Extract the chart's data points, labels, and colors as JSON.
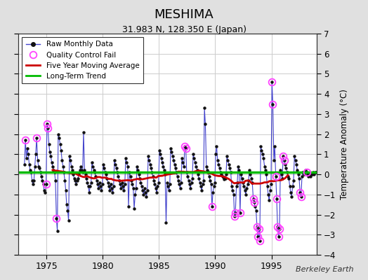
{
  "title": "MESHIMA",
  "subtitle": "31.983 N, 128.350 E (Japan)",
  "ylabel": "Temperature Anomaly (°C)",
  "attribution": "Berkeley Earth",
  "xlim": [
    1972.5,
    1999.0
  ],
  "ylim": [
    -4,
    7
  ],
  "yticks": [
    -4,
    -3,
    -2,
    -1,
    0,
    1,
    2,
    3,
    4,
    5,
    6,
    7
  ],
  "xticks": [
    1975,
    1980,
    1985,
    1990,
    1995
  ],
  "fig_bg_color": "#e0e0e0",
  "plot_bg_color": "#ffffff",
  "raw_line_color": "#4444cc",
  "raw_marker_color": "#111111",
  "qc_fail_color": "#ff44ff",
  "moving_avg_color": "#cc0000",
  "trend_color": "#00bb00",
  "trend_value": 0.12,
  "raw_data": [
    [
      1973.04,
      0.5
    ],
    [
      1973.12,
      1.7
    ],
    [
      1973.21,
      0.8
    ],
    [
      1973.29,
      1.3
    ],
    [
      1973.38,
      1.0
    ],
    [
      1973.46,
      0.5
    ],
    [
      1973.54,
      0.2
    ],
    [
      1973.63,
      0.1
    ],
    [
      1973.71,
      -0.3
    ],
    [
      1973.79,
      -0.5
    ],
    [
      1973.88,
      -0.3
    ],
    [
      1973.96,
      0.4
    ],
    [
      1974.04,
      1.0
    ],
    [
      1974.12,
      1.8
    ],
    [
      1974.21,
      0.7
    ],
    [
      1974.29,
      0.4
    ],
    [
      1974.38,
      0.3
    ],
    [
      1974.46,
      0.1
    ],
    [
      1974.54,
      -0.1
    ],
    [
      1974.63,
      -0.3
    ],
    [
      1974.71,
      -0.5
    ],
    [
      1974.79,
      -0.8
    ],
    [
      1974.88,
      -0.9
    ],
    [
      1974.96,
      -0.5
    ],
    [
      1975.04,
      2.5
    ],
    [
      1975.12,
      2.3
    ],
    [
      1975.21,
      1.5
    ],
    [
      1975.29,
      1.1
    ],
    [
      1975.38,
      0.9
    ],
    [
      1975.46,
      0.6
    ],
    [
      1975.54,
      0.4
    ],
    [
      1975.63,
      0.2
    ],
    [
      1975.71,
      0.1
    ],
    [
      1975.79,
      -0.3
    ],
    [
      1975.88,
      -2.2
    ],
    [
      1975.96,
      -2.8
    ],
    [
      1976.04,
      2.0
    ],
    [
      1976.12,
      1.8
    ],
    [
      1976.21,
      1.5
    ],
    [
      1976.29,
      1.2
    ],
    [
      1976.38,
      0.7
    ],
    [
      1976.46,
      0.4
    ],
    [
      1976.54,
      0.1
    ],
    [
      1976.63,
      -0.3
    ],
    [
      1976.71,
      -0.8
    ],
    [
      1976.79,
      -1.5
    ],
    [
      1976.88,
      -1.8
    ],
    [
      1976.96,
      -2.3
    ],
    [
      1977.04,
      0.9
    ],
    [
      1977.12,
      0.7
    ],
    [
      1977.21,
      0.4
    ],
    [
      1977.29,
      0.2
    ],
    [
      1977.38,
      0.0
    ],
    [
      1977.46,
      -0.2
    ],
    [
      1977.54,
      -0.3
    ],
    [
      1977.63,
      -0.5
    ],
    [
      1977.71,
      -0.3
    ],
    [
      1977.79,
      -0.2
    ],
    [
      1977.88,
      0.0
    ],
    [
      1977.96,
      0.2
    ],
    [
      1978.04,
      0.4
    ],
    [
      1978.12,
      0.2
    ],
    [
      1978.21,
      0.1
    ],
    [
      1978.29,
      2.1
    ],
    [
      1978.38,
      0.2
    ],
    [
      1978.46,
      0.0
    ],
    [
      1978.54,
      -0.2
    ],
    [
      1978.63,
      -0.4
    ],
    [
      1978.71,
      -0.6
    ],
    [
      1978.79,
      -0.9
    ],
    [
      1978.88,
      -0.6
    ],
    [
      1978.96,
      -0.4
    ],
    [
      1979.04,
      0.6
    ],
    [
      1979.12,
      0.4
    ],
    [
      1979.21,
      0.2
    ],
    [
      1979.29,
      0.1
    ],
    [
      1979.38,
      -0.1
    ],
    [
      1979.46,
      -0.3
    ],
    [
      1979.54,
      -0.5
    ],
    [
      1979.63,
      -0.7
    ],
    [
      1979.71,
      -0.4
    ],
    [
      1979.79,
      -0.6
    ],
    [
      1979.88,
      -0.8
    ],
    [
      1979.96,
      -0.5
    ],
    [
      1980.04,
      0.5
    ],
    [
      1980.12,
      0.3
    ],
    [
      1980.21,
      0.1
    ],
    [
      1980.29,
      0.0
    ],
    [
      1980.38,
      -0.2
    ],
    [
      1980.46,
      -0.4
    ],
    [
      1980.54,
      -0.6
    ],
    [
      1980.63,
      -0.8
    ],
    [
      1980.71,
      -0.5
    ],
    [
      1980.79,
      -0.7
    ],
    [
      1980.88,
      -0.9
    ],
    [
      1980.96,
      -0.6
    ],
    [
      1981.04,
      0.7
    ],
    [
      1981.12,
      0.5
    ],
    [
      1981.21,
      0.3
    ],
    [
      1981.29,
      0.1
    ],
    [
      1981.38,
      -0.1
    ],
    [
      1981.46,
      -0.3
    ],
    [
      1981.54,
      -0.5
    ],
    [
      1981.63,
      -0.7
    ],
    [
      1981.71,
      -0.4
    ],
    [
      1981.79,
      -0.6
    ],
    [
      1981.88,
      -0.8
    ],
    [
      1981.96,
      -0.5
    ],
    [
      1982.04,
      0.8
    ],
    [
      1982.12,
      0.6
    ],
    [
      1982.21,
      0.4
    ],
    [
      1982.29,
      -1.6
    ],
    [
      1982.38,
      0.1
    ],
    [
      1982.46,
      -0.1
    ],
    [
      1982.54,
      -0.3
    ],
    [
      1982.63,
      -0.5
    ],
    [
      1982.71,
      -0.7
    ],
    [
      1982.79,
      -1.7
    ],
    [
      1982.88,
      -1.0
    ],
    [
      1982.96,
      -0.7
    ],
    [
      1983.04,
      0.4
    ],
    [
      1983.12,
      0.2
    ],
    [
      1983.21,
      0.0
    ],
    [
      1983.29,
      -0.2
    ],
    [
      1983.38,
      -0.4
    ],
    [
      1983.46,
      -0.6
    ],
    [
      1983.54,
      -0.8
    ],
    [
      1983.63,
      -1.0
    ],
    [
      1983.71,
      -0.7
    ],
    [
      1983.79,
      -0.9
    ],
    [
      1983.88,
      -1.1
    ],
    [
      1983.96,
      -0.8
    ],
    [
      1984.04,
      0.9
    ],
    [
      1984.12,
      0.7
    ],
    [
      1984.21,
      0.5
    ],
    [
      1984.29,
      0.3
    ],
    [
      1984.38,
      0.1
    ],
    [
      1984.46,
      -0.1
    ],
    [
      1984.54,
      -0.3
    ],
    [
      1984.63,
      -0.5
    ],
    [
      1984.71,
      -0.7
    ],
    [
      1984.79,
      -0.9
    ],
    [
      1984.88,
      -0.6
    ],
    [
      1984.96,
      -0.4
    ],
    [
      1985.04,
      1.2
    ],
    [
      1985.12,
      1.0
    ],
    [
      1985.21,
      0.8
    ],
    [
      1985.29,
      0.6
    ],
    [
      1985.38,
      0.4
    ],
    [
      1985.46,
      0.2
    ],
    [
      1985.54,
      0.0
    ],
    [
      1985.63,
      -2.4
    ],
    [
      1985.71,
      -0.4
    ],
    [
      1985.79,
      -0.6
    ],
    [
      1985.88,
      -0.8
    ],
    [
      1985.96,
      -0.5
    ],
    [
      1986.04,
      1.3
    ],
    [
      1986.12,
      1.1
    ],
    [
      1986.21,
      0.9
    ],
    [
      1986.29,
      0.7
    ],
    [
      1986.38,
      0.5
    ],
    [
      1986.46,
      0.3
    ],
    [
      1986.54,
      0.1
    ],
    [
      1986.63,
      -0.1
    ],
    [
      1986.71,
      -0.3
    ],
    [
      1986.79,
      -0.5
    ],
    [
      1986.88,
      -0.7
    ],
    [
      1986.96,
      -0.4
    ],
    [
      1987.04,
      0.8
    ],
    [
      1987.12,
      0.6
    ],
    [
      1987.21,
      0.4
    ],
    [
      1987.29,
      1.4
    ],
    [
      1987.38,
      1.3
    ],
    [
      1987.46,
      0.1
    ],
    [
      1987.54,
      -0.1
    ],
    [
      1987.63,
      -0.3
    ],
    [
      1987.71,
      -0.5
    ],
    [
      1987.79,
      -0.7
    ],
    [
      1987.88,
      -0.4
    ],
    [
      1987.96,
      -0.2
    ],
    [
      1988.04,
      1.0
    ],
    [
      1988.12,
      0.8
    ],
    [
      1988.21,
      0.6
    ],
    [
      1988.29,
      0.4
    ],
    [
      1988.38,
      0.2
    ],
    [
      1988.46,
      0.0
    ],
    [
      1988.54,
      -0.2
    ],
    [
      1988.63,
      -0.4
    ],
    [
      1988.71,
      -0.6
    ],
    [
      1988.79,
      -0.8
    ],
    [
      1988.88,
      -0.5
    ],
    [
      1988.96,
      -0.3
    ],
    [
      1989.04,
      3.3
    ],
    [
      1989.12,
      2.5
    ],
    [
      1989.21,
      0.4
    ],
    [
      1989.29,
      0.2
    ],
    [
      1989.38,
      0.1
    ],
    [
      1989.46,
      -0.1
    ],
    [
      1989.54,
      -0.3
    ],
    [
      1989.63,
      -0.5
    ],
    [
      1989.71,
      -1.6
    ],
    [
      1989.79,
      -0.9
    ],
    [
      1989.88,
      -0.6
    ],
    [
      1989.96,
      -0.4
    ],
    [
      1990.04,
      1.0
    ],
    [
      1990.12,
      1.4
    ],
    [
      1990.21,
      0.7
    ],
    [
      1990.29,
      0.5
    ],
    [
      1990.38,
      0.3
    ],
    [
      1990.46,
      0.1
    ],
    [
      1990.54,
      0.0
    ],
    [
      1990.63,
      -0.1
    ],
    [
      1990.71,
      -0.15
    ],
    [
      1990.79,
      -0.25
    ],
    [
      1990.88,
      -0.2
    ],
    [
      1990.96,
      0.0
    ],
    [
      1991.04,
      0.9
    ],
    [
      1991.12,
      0.7
    ],
    [
      1991.21,
      0.5
    ],
    [
      1991.29,
      0.3
    ],
    [
      1991.38,
      0.1
    ],
    [
      1991.46,
      -0.6
    ],
    [
      1991.54,
      -0.8
    ],
    [
      1991.63,
      -1.0
    ],
    [
      1991.71,
      -2.1
    ],
    [
      1991.79,
      -1.9
    ],
    [
      1991.88,
      -0.6
    ],
    [
      1991.96,
      -0.4
    ],
    [
      1992.04,
      0.4
    ],
    [
      1992.12,
      0.2
    ],
    [
      1992.21,
      -1.9
    ],
    [
      1992.29,
      0.0
    ],
    [
      1992.38,
      -0.2
    ],
    [
      1992.46,
      -0.4
    ],
    [
      1992.54,
      -0.6
    ],
    [
      1992.63,
      -0.8
    ],
    [
      1992.71,
      -1.0
    ],
    [
      1992.79,
      -0.7
    ],
    [
      1992.88,
      -0.5
    ],
    [
      1992.96,
      -0.3
    ],
    [
      1993.04,
      0.2
    ],
    [
      1993.12,
      0.0
    ],
    [
      1993.21,
      -0.2
    ],
    [
      1993.29,
      -0.4
    ],
    [
      1993.38,
      -1.2
    ],
    [
      1993.46,
      -1.4
    ],
    [
      1993.54,
      -1.6
    ],
    [
      1993.63,
      -1.8
    ],
    [
      1993.71,
      -2.6
    ],
    [
      1993.79,
      -3.1
    ],
    [
      1993.88,
      -2.7
    ],
    [
      1993.96,
      -3.3
    ],
    [
      1994.04,
      1.4
    ],
    [
      1994.12,
      1.2
    ],
    [
      1994.21,
      1.0
    ],
    [
      1994.29,
      0.8
    ],
    [
      1994.38,
      0.4
    ],
    [
      1994.46,
      0.2
    ],
    [
      1994.54,
      0.0
    ],
    [
      1994.63,
      -0.6
    ],
    [
      1994.71,
      -1.0
    ],
    [
      1994.79,
      -1.3
    ],
    [
      1994.88,
      -0.8
    ],
    [
      1994.96,
      -0.5
    ],
    [
      1995.04,
      4.6
    ],
    [
      1995.12,
      3.5
    ],
    [
      1995.21,
      0.7
    ],
    [
      1995.29,
      1.4
    ],
    [
      1995.38,
      -0.1
    ],
    [
      1995.46,
      -1.2
    ],
    [
      1995.54,
      -2.6
    ],
    [
      1995.63,
      -3.1
    ],
    [
      1995.71,
      -2.7
    ],
    [
      1995.79,
      0.2
    ],
    [
      1995.88,
      0.0
    ],
    [
      1995.96,
      -0.2
    ],
    [
      1996.04,
      0.9
    ],
    [
      1996.12,
      0.7
    ],
    [
      1996.21,
      0.5
    ],
    [
      1996.29,
      0.3
    ],
    [
      1996.38,
      0.1
    ],
    [
      1996.46,
      -0.1
    ],
    [
      1996.54,
      -0.2
    ],
    [
      1996.63,
      -0.6
    ],
    [
      1996.71,
      -0.9
    ],
    [
      1996.79,
      -1.1
    ],
    [
      1996.88,
      -0.6
    ],
    [
      1996.96,
      -0.3
    ],
    [
      1997.04,
      0.9
    ],
    [
      1997.12,
      0.7
    ],
    [
      1997.21,
      0.5
    ],
    [
      1997.29,
      0.2
    ],
    [
      1997.38,
      0.0
    ],
    [
      1997.46,
      -0.2
    ],
    [
      1997.54,
      -0.9
    ],
    [
      1997.63,
      -1.1
    ],
    [
      1997.71,
      -0.1
    ],
    [
      1997.79,
      0.1
    ],
    [
      1997.88,
      0.0
    ],
    [
      1997.96,
      0.1
    ],
    [
      1998.04,
      0.2
    ],
    [
      1998.12,
      0.1
    ],
    [
      1998.21,
      0.0
    ],
    [
      1998.29,
      -0.1
    ],
    [
      1998.38,
      0.0
    ],
    [
      1998.46,
      -0.1
    ],
    [
      1998.54,
      0.0
    ],
    [
      1998.63,
      0.0
    ],
    [
      1998.71,
      0.1
    ],
    [
      1998.79,
      0.0
    ],
    [
      1998.88,
      0.1
    ],
    [
      1998.96,
      0.1
    ]
  ],
  "qc_fail_points": [
    [
      1973.12,
      1.7
    ],
    [
      1974.12,
      1.8
    ],
    [
      1974.96,
      -0.5
    ],
    [
      1975.04,
      2.5
    ],
    [
      1975.12,
      2.3
    ],
    [
      1975.88,
      -2.2
    ],
    [
      1987.29,
      1.4
    ],
    [
      1987.38,
      1.3
    ],
    [
      1989.71,
      -1.6
    ],
    [
      1991.71,
      -2.1
    ],
    [
      1991.79,
      -1.9
    ],
    [
      1992.21,
      -1.9
    ],
    [
      1993.38,
      -1.2
    ],
    [
      1993.46,
      -1.4
    ],
    [
      1993.71,
      -2.6
    ],
    [
      1993.79,
      -3.1
    ],
    [
      1993.88,
      -2.7
    ],
    [
      1993.96,
      -3.3
    ],
    [
      1995.04,
      4.6
    ],
    [
      1995.12,
      3.5
    ],
    [
      1995.38,
      -0.1
    ],
    [
      1995.46,
      -1.2
    ],
    [
      1995.54,
      -2.6
    ],
    [
      1995.63,
      -3.1
    ],
    [
      1995.71,
      -2.7
    ],
    [
      1996.04,
      0.9
    ],
    [
      1996.12,
      0.7
    ],
    [
      1997.54,
      -0.9
    ],
    [
      1997.63,
      -1.1
    ],
    [
      1998.12,
      0.1
    ]
  ],
  "moving_avg": [
    [
      1975.04,
      -0.12
    ],
    [
      1975.21,
      -0.13
    ],
    [
      1975.38,
      -0.1
    ],
    [
      1975.54,
      -0.08
    ],
    [
      1975.71,
      -0.05
    ],
    [
      1975.88,
      -0.05
    ],
    [
      1976.04,
      -0.04
    ],
    [
      1976.21,
      -0.03
    ],
    [
      1976.38,
      0.01
    ],
    [
      1976.54,
      0.03
    ],
    [
      1976.71,
      0.05
    ],
    [
      1976.88,
      0.07
    ],
    [
      1977.04,
      0.08
    ],
    [
      1977.21,
      0.09
    ],
    [
      1977.38,
      0.1
    ],
    [
      1977.54,
      0.1
    ],
    [
      1977.71,
      0.1
    ],
    [
      1977.88,
      0.09
    ],
    [
      1978.04,
      0.09
    ],
    [
      1978.21,
      0.1
    ],
    [
      1978.38,
      0.11
    ],
    [
      1978.54,
      0.12
    ],
    [
      1978.71,
      0.12
    ],
    [
      1978.88,
      0.12
    ],
    [
      1979.04,
      0.12
    ],
    [
      1979.21,
      0.11
    ],
    [
      1979.38,
      0.1
    ],
    [
      1979.54,
      0.09
    ],
    [
      1979.71,
      0.08
    ],
    [
      1979.88,
      0.07
    ],
    [
      1980.04,
      0.06
    ],
    [
      1980.21,
      0.05
    ],
    [
      1980.38,
      0.04
    ],
    [
      1980.54,
      0.02
    ],
    [
      1980.71,
      0.01
    ],
    [
      1980.88,
      0.01
    ],
    [
      1981.04,
      0.02
    ],
    [
      1981.21,
      0.02
    ],
    [
      1981.38,
      0.02
    ],
    [
      1981.54,
      0.03
    ],
    [
      1981.71,
      0.04
    ],
    [
      1981.88,
      0.04
    ],
    [
      1982.04,
      0.05
    ],
    [
      1982.21,
      0.05
    ],
    [
      1982.38,
      0.05
    ],
    [
      1982.54,
      0.04
    ],
    [
      1982.71,
      0.03
    ],
    [
      1982.88,
      0.02
    ],
    [
      1983.04,
      0.01
    ],
    [
      1983.21,
      0.0
    ],
    [
      1983.38,
      -0.01
    ],
    [
      1983.54,
      -0.01
    ],
    [
      1983.71,
      -0.02
    ],
    [
      1983.88,
      -0.02
    ],
    [
      1984.04,
      -0.03
    ],
    [
      1984.21,
      -0.03
    ],
    [
      1984.38,
      -0.02
    ],
    [
      1984.54,
      -0.02
    ],
    [
      1984.71,
      -0.01
    ],
    [
      1984.88,
      0.0
    ],
    [
      1985.04,
      0.01
    ],
    [
      1985.21,
      0.02
    ],
    [
      1985.38,
      0.03
    ],
    [
      1985.54,
      0.04
    ],
    [
      1985.71,
      0.05
    ],
    [
      1985.88,
      0.06
    ],
    [
      1986.04,
      0.07
    ],
    [
      1986.21,
      0.08
    ],
    [
      1986.38,
      0.09
    ],
    [
      1986.54,
      0.1
    ],
    [
      1986.71,
      0.11
    ],
    [
      1986.88,
      0.12
    ],
    [
      1987.04,
      0.15
    ],
    [
      1987.21,
      0.17
    ],
    [
      1987.38,
      0.19
    ],
    [
      1987.54,
      0.22
    ],
    [
      1987.71,
      0.25
    ],
    [
      1987.88,
      0.28
    ],
    [
      1988.04,
      0.3
    ],
    [
      1988.21,
      0.33
    ],
    [
      1988.38,
      0.35
    ],
    [
      1988.54,
      0.36
    ],
    [
      1988.71,
      0.37
    ],
    [
      1988.88,
      0.38
    ],
    [
      1989.04,
      0.4
    ],
    [
      1989.21,
      0.42
    ],
    [
      1989.38,
      0.44
    ],
    [
      1989.54,
      0.46
    ],
    [
      1989.71,
      0.47
    ],
    [
      1989.88,
      0.48
    ],
    [
      1990.04,
      0.49
    ],
    [
      1990.21,
      0.5
    ],
    [
      1990.38,
      0.5
    ],
    [
      1990.54,
      0.5
    ],
    [
      1990.71,
      0.49
    ],
    [
      1990.88,
      0.49
    ],
    [
      1991.04,
      0.48
    ],
    [
      1991.21,
      0.46
    ],
    [
      1991.38,
      0.43
    ],
    [
      1991.54,
      0.4
    ],
    [
      1991.71,
      0.35
    ],
    [
      1991.88,
      0.3
    ],
    [
      1992.04,
      0.25
    ],
    [
      1992.21,
      0.2
    ],
    [
      1992.38,
      0.15
    ],
    [
      1992.54,
      0.1
    ],
    [
      1992.71,
      0.05
    ],
    [
      1992.88,
      0.02
    ],
    [
      1993.04,
      0.0
    ],
    [
      1993.21,
      -0.02
    ],
    [
      1993.38,
      -0.04
    ],
    [
      1993.54,
      -0.05
    ],
    [
      1993.71,
      -0.06
    ],
    [
      1993.88,
      -0.06
    ],
    [
      1994.04,
      -0.05
    ],
    [
      1994.21,
      -0.03
    ]
  ]
}
